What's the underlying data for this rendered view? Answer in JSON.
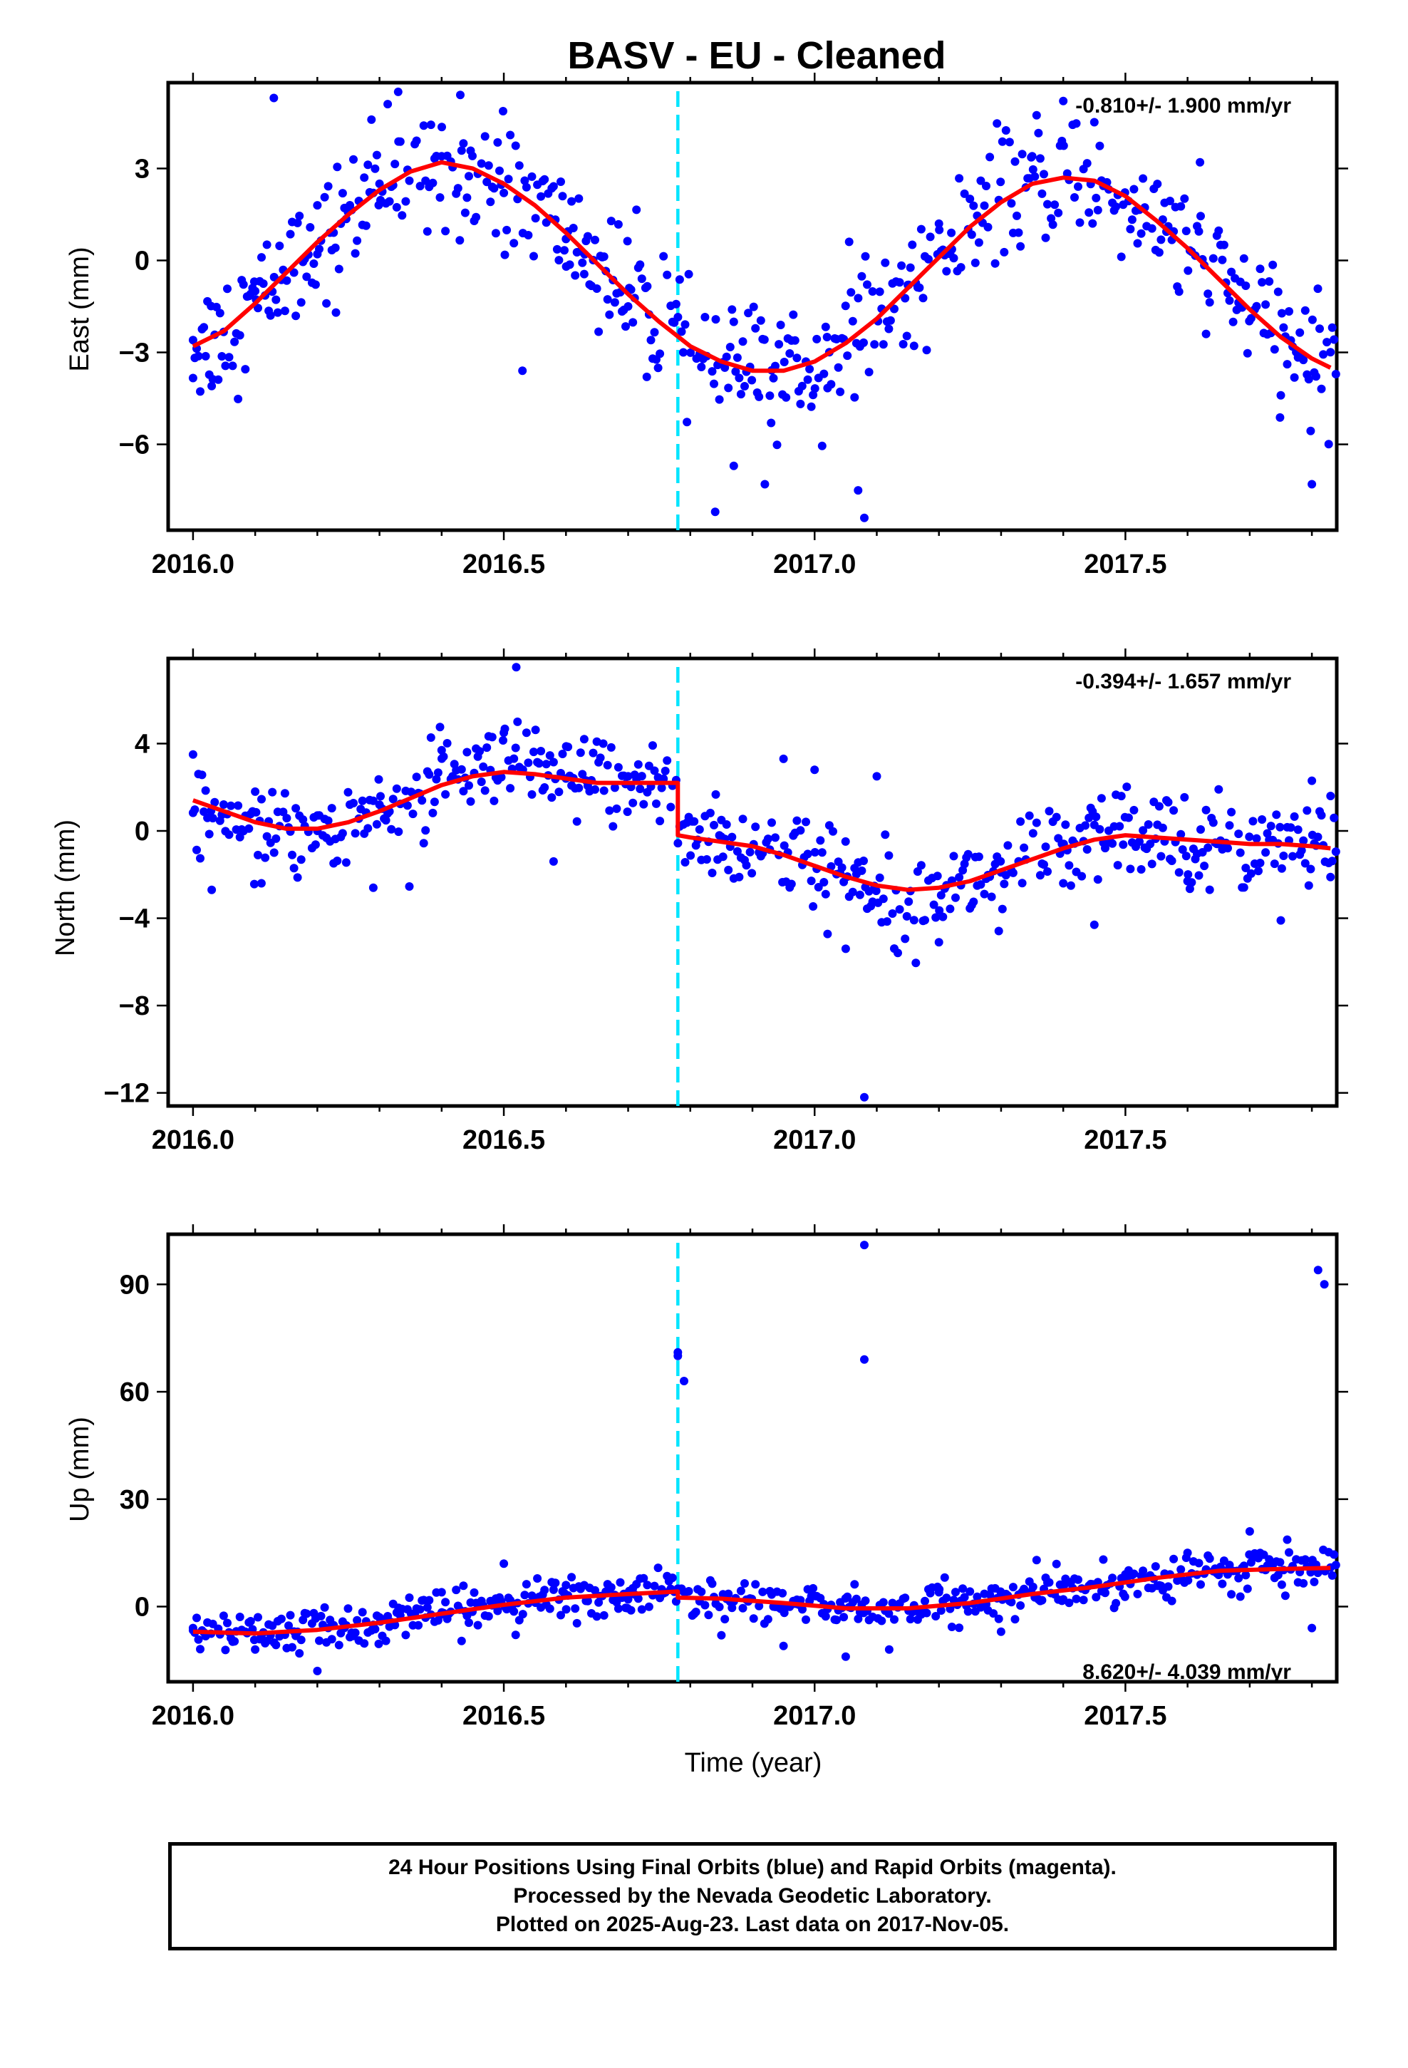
{
  "title": "BASV  - EU - Cleaned",
  "xlabel": "Time (year)",
  "footer": {
    "line1": "24 Hour Positions Using Final Orbits (blue) and Rapid Orbits (magenta).",
    "line2": "Processed by the Nevada Geodetic Laboratory.",
    "line3": "Plotted on 2025-Aug-23. Last data on 2017-Nov-05."
  },
  "colors": {
    "data": "#0000ff",
    "model": "#ff0000",
    "equipment_change": "#00e5ff",
    "frame": "#000000"
  },
  "chart_data": [
    {
      "type": "scatter",
      "panel": "east",
      "ylabel": "East (mm)",
      "rate_label": "-0.810+/- 1.900 mm/yr",
      "rate_position": "top-right",
      "xlim": [
        2015.96,
        2017.84
      ],
      "ylim": [
        -8.8,
        5.8
      ],
      "xticks": [
        2016.0,
        2016.5,
        2017.0,
        2017.5
      ],
      "xtick_labels": [
        "2016.0",
        "2016.5",
        "2017.0",
        "2017.5"
      ],
      "yticks": [
        -6,
        -3,
        0,
        3
      ],
      "ytick_labels": [
        "−6",
        "−3",
        "0",
        "3"
      ],
      "step_epoch": 2016.78,
      "model": {
        "x": [
          2016.0,
          2016.05,
          2016.1,
          2016.15,
          2016.2,
          2016.25,
          2016.3,
          2016.35,
          2016.4,
          2016.45,
          2016.5,
          2016.55,
          2016.6,
          2016.65,
          2016.7,
          2016.75,
          2016.8,
          2016.85,
          2016.9,
          2016.95,
          2017.0,
          2017.05,
          2017.1,
          2017.15,
          2017.2,
          2017.25,
          2017.3,
          2017.35,
          2017.4,
          2017.45,
          2017.5,
          2017.55,
          2017.6,
          2017.65,
          2017.7,
          2017.75,
          2017.8,
          2017.83
        ],
        "y": [
          -2.8,
          -2.3,
          -1.4,
          -0.4,
          0.6,
          1.5,
          2.3,
          2.9,
          3.2,
          3.0,
          2.5,
          1.8,
          0.9,
          -0.1,
          -1.1,
          -2.0,
          -2.8,
          -3.3,
          -3.6,
          -3.6,
          -3.3,
          -2.7,
          -1.9,
          -0.9,
          0.1,
          1.1,
          1.9,
          2.5,
          2.7,
          2.6,
          2.1,
          1.3,
          0.4,
          -0.6,
          -1.6,
          -2.5,
          -3.2,
          -3.5
        ]
      },
      "observations": [
        {
          "x": [
            2016.0,
            2016.1,
            2016.2,
            2016.3,
            2016.4,
            2016.5,
            2016.6,
            2016.7
          ],
          "y": [
            -2.6,
            -1.0,
            1.8,
            2.5,
            3.4,
            2.2,
            0.7,
            -1.5
          ]
        },
        {
          "x": [
            2016.03,
            2016.13,
            2016.23,
            2016.33,
            2016.43,
            2016.53,
            2016.63,
            2016.73
          ],
          "y": [
            -4.1,
            5.3,
            -1.7,
            5.5,
            5.4,
            -3.6,
            0.2,
            -3.8
          ]
        },
        {
          "x": [
            2016.81,
            2016.87,
            2016.93,
            2017.02,
            2017.08,
            2017.15,
            2017.22,
            2017.35
          ],
          "y": [
            -3.2,
            -6.7,
            -5.3,
            -2.5,
            -8.4,
            -0.8,
            0.9,
            3.4
          ]
        },
        {
          "x": [
            2016.84,
            2016.92,
            2016.98,
            2017.07,
            2017.2,
            2017.4,
            2017.62,
            2017.75,
            2017.8
          ],
          "y": [
            -8.2,
            -7.3,
            -4.1,
            -7.5,
            1.2,
            5.2,
            3.2,
            -4.4,
            -7.3
          ]
        }
      ]
    },
    {
      "type": "scatter",
      "panel": "north",
      "ylabel": "North (mm)",
      "rate_label": "-0.394+/- 1.657 mm/yr",
      "rate_position": "top-right",
      "xlim": [
        2015.96,
        2017.84
      ],
      "ylim": [
        -12.6,
        7.9
      ],
      "xticks": [
        2016.0,
        2016.5,
        2017.0,
        2017.5
      ],
      "xtick_labels": [
        "2016.0",
        "2016.5",
        "2017.0",
        "2017.5"
      ],
      "yticks": [
        -12,
        -8,
        -4,
        0,
        4
      ],
      "ytick_labels": [
        "−12",
        "−8",
        "−4",
        "0",
        "4"
      ],
      "step_epoch": 2016.78,
      "model": {
        "x": [
          2016.0,
          2016.05,
          2016.1,
          2016.15,
          2016.2,
          2016.25,
          2016.3,
          2016.35,
          2016.4,
          2016.45,
          2016.5,
          2016.55,
          2016.6,
          2016.65,
          2016.7,
          2016.75,
          2016.78,
          2016.78,
          2016.8,
          2016.85,
          2016.9,
          2016.95,
          2017.0,
          2017.05,
          2017.1,
          2017.15,
          2017.2,
          2017.25,
          2017.3,
          2017.35,
          2017.4,
          2017.45,
          2017.5,
          2017.55,
          2017.6,
          2017.65,
          2017.7,
          2017.75,
          2017.8,
          2017.83
        ],
        "y": [
          1.4,
          0.9,
          0.4,
          0.1,
          0.1,
          0.4,
          0.9,
          1.5,
          2.1,
          2.5,
          2.7,
          2.6,
          2.4,
          2.2,
          2.2,
          2.2,
          2.2,
          -0.2,
          -0.3,
          -0.5,
          -0.7,
          -1.1,
          -1.6,
          -2.1,
          -2.5,
          -2.7,
          -2.6,
          -2.3,
          -1.8,
          -1.3,
          -0.8,
          -0.4,
          -0.2,
          -0.3,
          -0.4,
          -0.5,
          -0.6,
          -0.6,
          -0.7,
          -0.8
        ]
      },
      "observations": [
        {
          "x": [
            2016.0,
            2016.1,
            2016.2,
            2016.3,
            2016.4,
            2016.5,
            2016.6,
            2016.7
          ],
          "y": [
            3.5,
            1.8,
            0.0,
            1.2,
            3.7,
            4.5,
            2.4,
            2.5
          ]
        },
        {
          "x": [
            2016.03,
            2016.11,
            2016.29,
            2016.52,
            2016.58,
            2016.66
          ],
          "y": [
            -2.7,
            -2.4,
            -2.6,
            7.5,
            -1.4,
            4.0
          ]
        },
        {
          "x": [
            2016.85,
            2016.95,
            2017.05,
            2017.08,
            2017.1,
            2017.2,
            2017.45
          ],
          "y": [
            0.5,
            3.3,
            -5.4,
            -12.2,
            2.5,
            -5.1,
            -4.3
          ]
        },
        {
          "x": [
            2017.0,
            2017.3,
            2017.4,
            2017.6,
            2017.65,
            2017.75,
            2017.8,
            2017.83
          ],
          "y": [
            2.8,
            -1.9,
            -2.4,
            -2.3,
            1.9,
            -4.1,
            2.3,
            1.6
          ]
        }
      ]
    },
    {
      "type": "scatter",
      "panel": "up",
      "ylabel": "Up (mm)",
      "rate_label": "8.620+/- 4.039 mm/yr",
      "rate_position": "bottom-right",
      "xlim": [
        2015.96,
        2017.84
      ],
      "ylim": [
        -21,
        104
      ],
      "xticks": [
        2016.0,
        2016.5,
        2017.0,
        2017.5
      ],
      "xtick_labels": [
        "2016.0",
        "2016.5",
        "2017.0",
        "2017.5"
      ],
      "yticks": [
        0,
        30,
        60,
        90
      ],
      "ytick_labels": [
        "0",
        "30",
        "60",
        "90"
      ],
      "step_epoch": 2016.78,
      "model": {
        "x": [
          2016.0,
          2016.1,
          2016.2,
          2016.3,
          2016.4,
          2016.5,
          2016.6,
          2016.7,
          2016.78,
          2016.78,
          2016.85,
          2016.95,
          2017.05,
          2017.15,
          2017.25,
          2017.35,
          2017.45,
          2017.55,
          2017.65,
          2017.75,
          2017.83
        ],
        "y": [
          -7.0,
          -7.5,
          -6.5,
          -4.5,
          -2.0,
          0.5,
          2.5,
          3.5,
          4.2,
          2.5,
          2.2,
          1.0,
          -0.5,
          -0.5,
          1.0,
          3.5,
          5.5,
          8.0,
          10.0,
          10.5,
          10.8
        ]
      },
      "observations": [
        {
          "x": [
            2016.0,
            2016.1,
            2016.2,
            2016.3,
            2016.4,
            2016.5,
            2016.6,
            2016.7,
            2016.78
          ],
          "y": [
            -6.0,
            -12.0,
            -18.0,
            -3.0,
            4.0,
            12.0,
            6.0,
            2.0,
            5.0
          ]
        },
        {
          "x": [
            2016.78,
            2016.78,
            2016.79,
            2017.08,
            2017.08,
            2017.81,
            2017.82
          ],
          "y": [
            71.0,
            70.0,
            63.0,
            101.0,
            69.0,
            94.0,
            90.0
          ]
        },
        {
          "x": [
            2016.85,
            2016.95,
            2017.05,
            2017.12,
            2017.2,
            2017.3,
            2017.4,
            2017.5,
            2017.6,
            2017.7,
            2017.8
          ],
          "y": [
            -8.0,
            -11.0,
            -14.0,
            -12.0,
            4.0,
            -7.0,
            2.0,
            9.0,
            15.0,
            21.0,
            -6.0
          ]
        }
      ]
    }
  ]
}
